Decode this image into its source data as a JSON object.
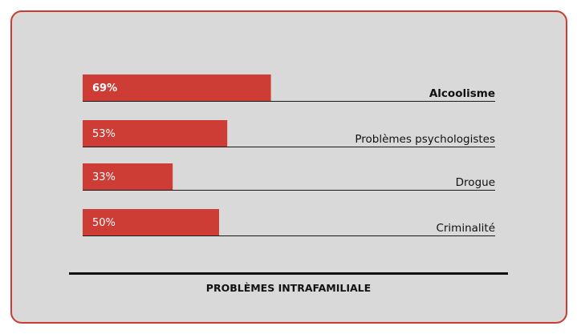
{
  "chart_data": {
    "type": "bar",
    "orientation": "horizontal",
    "title": "PROBLÈMES INTRAFAMILIALE",
    "categories": [
      "Alcoolisme",
      "Problèmes psychologistes",
      "Drogue",
      "Criminalité"
    ],
    "values": [
      69,
      53,
      33,
      50
    ],
    "value_labels": [
      "69%",
      "53%",
      "33%",
      "50%"
    ],
    "highlighted_category": "Alcoolisme",
    "xlim": [
      0,
      100
    ],
    "bar_color": "#cd3c35",
    "grid": false,
    "legend": false
  },
  "colors": {
    "card_background": "#dad9d9",
    "card_border": "#cc3a32",
    "bar": "#cd3c35",
    "text": "#111111"
  }
}
